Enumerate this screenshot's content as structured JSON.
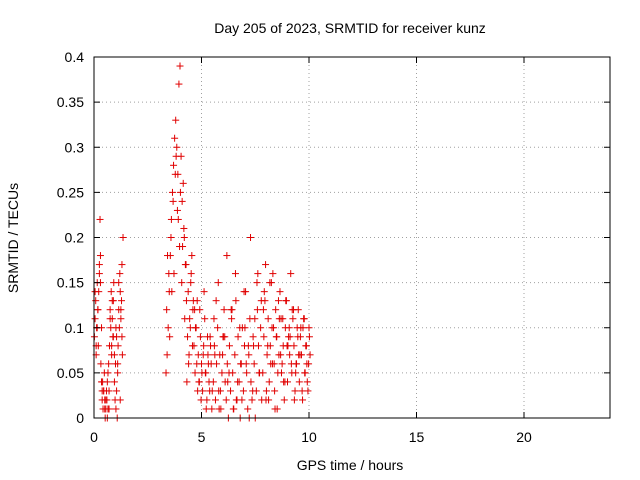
{
  "chart_data": {
    "type": "scatter",
    "title": "Day 205 of 2023, SRMTID for receiver kunz",
    "xlabel": "GPS time / hours",
    "ylabel": "SRMTID / TECUs",
    "xlim": [
      0,
      24
    ],
    "ylim": [
      0,
      0.4
    ],
    "xticks": [
      0,
      5,
      10,
      15,
      20
    ],
    "yticks": [
      0,
      0.05,
      0.1,
      0.15,
      0.2,
      0.25,
      0.3,
      0.35,
      0.4
    ],
    "xtick_labels": [
      "0",
      "5",
      "10",
      "15",
      "20"
    ],
    "ytick_labels": [
      "0",
      "0.05",
      "0.1",
      "0.15",
      "0.2",
      "0.25",
      "0.3",
      "0.35",
      "0.4"
    ],
    "grid": true,
    "marker": "+",
    "color": "#e00000",
    "series": [
      {
        "name": "kunz",
        "x": [
          0.02,
          0.05,
          0.08,
          0.1,
          0.12,
          0.15,
          0.18,
          0.2,
          0.22,
          0.25,
          0.28,
          0.3,
          0.32,
          0.35,
          0.38,
          0.4,
          0.42,
          0.45,
          0.48,
          0.5,
          0.52,
          0.55,
          0.58,
          0.6,
          0.62,
          0.65,
          0.68,
          0.7,
          0.72,
          0.75,
          0.78,
          0.8,
          0.82,
          0.85,
          0.88,
          0.9,
          0.92,
          0.95,
          0.98,
          1.0,
          1.02,
          1.05,
          1.08,
          1.1,
          1.12,
          1.15,
          1.18,
          1.2,
          1.22,
          1.25,
          1.28,
          1.3,
          1.32,
          1.35,
          0.05,
          0.15,
          0.25,
          0.35,
          0.45,
          0.55,
          0.65,
          0.75,
          0.85,
          0.95,
          1.05,
          1.15,
          1.25,
          0.1,
          0.3,
          0.5,
          0.7,
          0.9,
          1.1,
          1.3,
          0.18,
          0.38,
          0.62,
          0.82,
          1.02,
          1.22,
          3.35,
          3.4,
          3.45,
          3.5,
          3.55,
          3.6,
          3.65,
          3.7,
          3.75,
          3.8,
          3.85,
          3.9,
          3.95,
          4.0,
          4.05,
          4.1,
          4.15,
          4.2,
          4.25,
          4.3,
          4.35,
          4.4,
          4.45,
          4.5,
          4.55,
          4.6,
          4.65,
          4.7,
          4.75,
          4.8,
          4.85,
          4.9,
          4.95,
          5.0,
          5.05,
          5.1,
          5.15,
          5.2,
          5.25,
          5.3,
          5.35,
          5.4,
          5.45,
          5.5,
          3.38,
          3.48,
          3.58,
          3.68,
          3.78,
          3.88,
          3.98,
          4.08,
          4.18,
          4.28,
          4.38,
          4.48,
          4.58,
          4.68,
          4.78,
          4.88,
          4.98,
          5.08,
          5.18,
          5.28,
          5.38,
          5.48,
          3.42,
          3.62,
          3.82,
          4.02,
          4.22,
          4.42,
          4.62,
          4.82,
          5.02,
          5.22,
          5.42,
          3.52,
          3.72,
          3.92,
          4.12,
          4.32,
          4.52,
          4.72,
          4.92,
          5.12,
          5.32,
          5.55,
          5.6,
          5.65,
          5.7,
          5.75,
          5.8,
          5.85,
          5.9,
          5.95,
          6.0,
          6.05,
          6.1,
          6.15,
          6.2,
          6.25,
          6.3,
          6.35,
          6.4,
          6.45,
          6.5,
          6.55,
          6.6,
          6.65,
          6.7,
          6.75,
          6.8,
          6.85,
          6.9,
          6.95,
          7.0,
          7.05,
          7.1,
          7.15,
          7.2,
          7.25,
          7.3,
          7.35,
          7.4,
          7.45,
          7.5,
          7.55,
          7.6,
          7.65,
          7.7,
          7.75,
          7.8,
          5.58,
          5.68,
          5.78,
          5.88,
          5.98,
          6.08,
          6.18,
          6.28,
          6.38,
          6.48,
          6.58,
          6.68,
          6.78,
          6.88,
          6.98,
          7.08,
          7.18,
          7.28,
          7.38,
          7.48,
          7.58,
          7.68,
          7.78,
          5.62,
          5.82,
          6.02,
          6.22,
          6.42,
          6.62,
          6.82,
          7.02,
          7.22,
          7.42,
          7.62,
          7.85,
          7.9,
          7.95,
          8.0,
          8.05,
          8.1,
          8.15,
          8.2,
          8.25,
          8.3,
          8.35,
          8.4,
          8.45,
          8.5,
          8.55,
          8.6,
          8.65,
          8.7,
          8.75,
          8.8,
          8.85,
          8.9,
          8.95,
          9.0,
          9.05,
          9.1,
          9.15,
          9.2,
          9.25,
          9.3,
          9.35,
          9.4,
          9.45,
          9.5,
          9.55,
          9.6,
          9.65,
          9.7,
          9.75,
          9.8,
          9.85,
          9.9,
          9.95,
          10.0,
          10.05,
          7.88,
          7.98,
          8.08,
          8.18,
          8.28,
          8.38,
          8.48,
          8.58,
          8.68,
          8.78,
          8.88,
          8.98,
          9.08,
          9.18,
          9.28,
          9.38,
          9.48,
          9.58,
          9.68,
          9.78,
          9.88,
          9.98,
          7.92,
          8.12,
          8.32,
          8.52,
          8.72,
          8.92,
          9.12,
          9.32,
          9.52,
          9.72,
          9.92,
          8.02,
          8.22,
          8.42,
          8.62,
          8.82,
          9.02,
          9.22,
          9.42,
          9.62,
          9.82,
          10.02
        ],
        "y": [
          0.09,
          0.11,
          0.13,
          0.07,
          0.1,
          0.15,
          0.12,
          0.08,
          0.14,
          0.16,
          0.22,
          0.18,
          0.06,
          0.1,
          0.02,
          0.04,
          0.01,
          0.03,
          0.05,
          0.02,
          0.0,
          0.01,
          0.03,
          0.02,
          0.04,
          0.01,
          0.06,
          0.03,
          0.08,
          0.12,
          0.1,
          0.14,
          0.07,
          0.11,
          0.09,
          0.13,
          0.15,
          0.04,
          0.02,
          0.06,
          0.01,
          0.03,
          0.0,
          0.05,
          0.08,
          0.12,
          0.1,
          0.16,
          0.14,
          0.11,
          0.13,
          0.09,
          0.07,
          0.2,
          0.14,
          0.1,
          0.17,
          0.04,
          0.03,
          0.02,
          0.05,
          0.11,
          0.13,
          0.07,
          0.09,
          0.15,
          0.12,
          0.08,
          0.15,
          0.01,
          0.01,
          0.09,
          0.06,
          0.17,
          0.12,
          0.03,
          0.0,
          0.08,
          0.1,
          0.02,
          0.05,
          0.07,
          0.1,
          0.14,
          0.18,
          0.22,
          0.25,
          0.28,
          0.31,
          0.33,
          0.3,
          0.27,
          0.37,
          0.39,
          0.29,
          0.24,
          0.26,
          0.2,
          0.17,
          0.13,
          0.09,
          0.06,
          0.11,
          0.15,
          0.18,
          0.12,
          0.08,
          0.05,
          0.1,
          0.13,
          0.07,
          0.04,
          0.09,
          0.06,
          0.03,
          0.08,
          0.11,
          0.05,
          0.02,
          0.07,
          0.04,
          0.09,
          0.06,
          0.03,
          0.12,
          0.16,
          0.2,
          0.24,
          0.27,
          0.23,
          0.19,
          0.15,
          0.21,
          0.17,
          0.14,
          0.1,
          0.08,
          0.12,
          0.06,
          0.04,
          0.02,
          0.07,
          0.05,
          0.09,
          0.03,
          0.01,
          0.18,
          0.14,
          0.29,
          0.25,
          0.11,
          0.07,
          0.13,
          0.03,
          0.05,
          0.01,
          0.08,
          0.09,
          0.16,
          0.22,
          0.19,
          0.04,
          0.16,
          0.1,
          0.12,
          0.14,
          0.06,
          0.04,
          0.08,
          0.02,
          0.06,
          0.1,
          0.03,
          0.07,
          0.01,
          0.05,
          0.09,
          0.12,
          0.04,
          0.02,
          0.06,
          0.0,
          0.08,
          0.03,
          0.11,
          0.05,
          0.01,
          0.07,
          0.13,
          0.02,
          0.09,
          0.04,
          0.0,
          0.06,
          0.1,
          0.03,
          0.08,
          0.14,
          0.05,
          0.01,
          0.07,
          0.11,
          0.04,
          0.02,
          0.09,
          0.06,
          0.0,
          0.03,
          0.12,
          0.08,
          0.05,
          0.1,
          0.02,
          0.11,
          0.13,
          0.15,
          0.03,
          0.07,
          0.09,
          0.18,
          0.05,
          0.12,
          0.01,
          0.16,
          0.04,
          0.1,
          0.02,
          0.14,
          0.06,
          0.08,
          0.2,
          0.03,
          0.11,
          0.15,
          0.05,
          0.13,
          0.07,
          0.01,
          0.09,
          0.04,
          0.12,
          0.02,
          0.06,
          0.1,
          0.0,
          0.08,
          0.16,
          0.05,
          0.09,
          0.13,
          0.02,
          0.07,
          0.11,
          0.04,
          0.08,
          0.15,
          0.06,
          0.1,
          0.03,
          0.12,
          0.09,
          0.05,
          0.07,
          0.14,
          0.11,
          0.06,
          0.08,
          0.02,
          0.1,
          0.13,
          0.04,
          0.09,
          0.07,
          0.16,
          0.05,
          0.11,
          0.08,
          0.03,
          0.06,
          0.1,
          0.12,
          0.04,
          0.09,
          0.07,
          0.02,
          0.11,
          0.05,
          0.08,
          0.06,
          0.03,
          0.1,
          0.07,
          0.12,
          0.17,
          0.08,
          0.15,
          0.1,
          0.06,
          0.09,
          0.13,
          0.07,
          0.11,
          0.04,
          0.08,
          0.1,
          0.06,
          0.12,
          0.05,
          0.09,
          0.07,
          0.03,
          0.11,
          0.08,
          0.06,
          0.14,
          0.02,
          0.16,
          0.01,
          0.05,
          0.13,
          0.09,
          0.02,
          0.07,
          0.1,
          0.04,
          0.03,
          0.06,
          0.01,
          0.11,
          0.04,
          0.08,
          0.12,
          0.06,
          0.1,
          0.05,
          0.09
        ]
      }
    ]
  }
}
